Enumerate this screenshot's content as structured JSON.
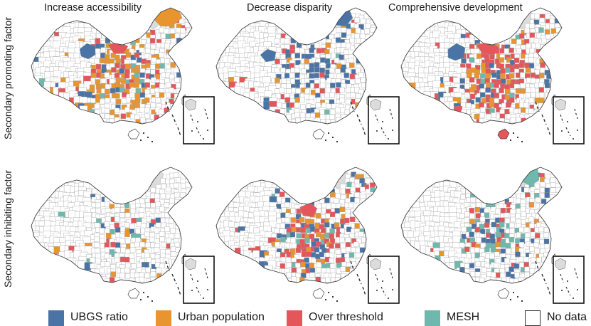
{
  "columns": [
    {
      "title": "Increase accessibility"
    },
    {
      "title": "Decrease disparity"
    },
    {
      "title": "Comprehensive development"
    }
  ],
  "rows": [
    {
      "label": "Secondary promoting factor"
    },
    {
      "label": "Secondary inhibiting factor"
    }
  ],
  "legend": [
    {
      "key": "ubgs",
      "label": "UBGS ratio",
      "color": "#4a73a6"
    },
    {
      "key": "urban",
      "label": "Urban population",
      "color": "#e8952f"
    },
    {
      "key": "over",
      "label": "Over threshold",
      "color": "#e5565a"
    },
    {
      "key": "mesh",
      "label": "MESH",
      "color": "#6fb8ad"
    },
    {
      "key": "nodata",
      "label": "No data",
      "color": "#ffffff"
    }
  ],
  "map_colors": {
    "outline": "#444444",
    "inner_boundary": "#9a9a9a",
    "grey_region": "#dcdcdc",
    "white_region": "#ffffff"
  }
}
